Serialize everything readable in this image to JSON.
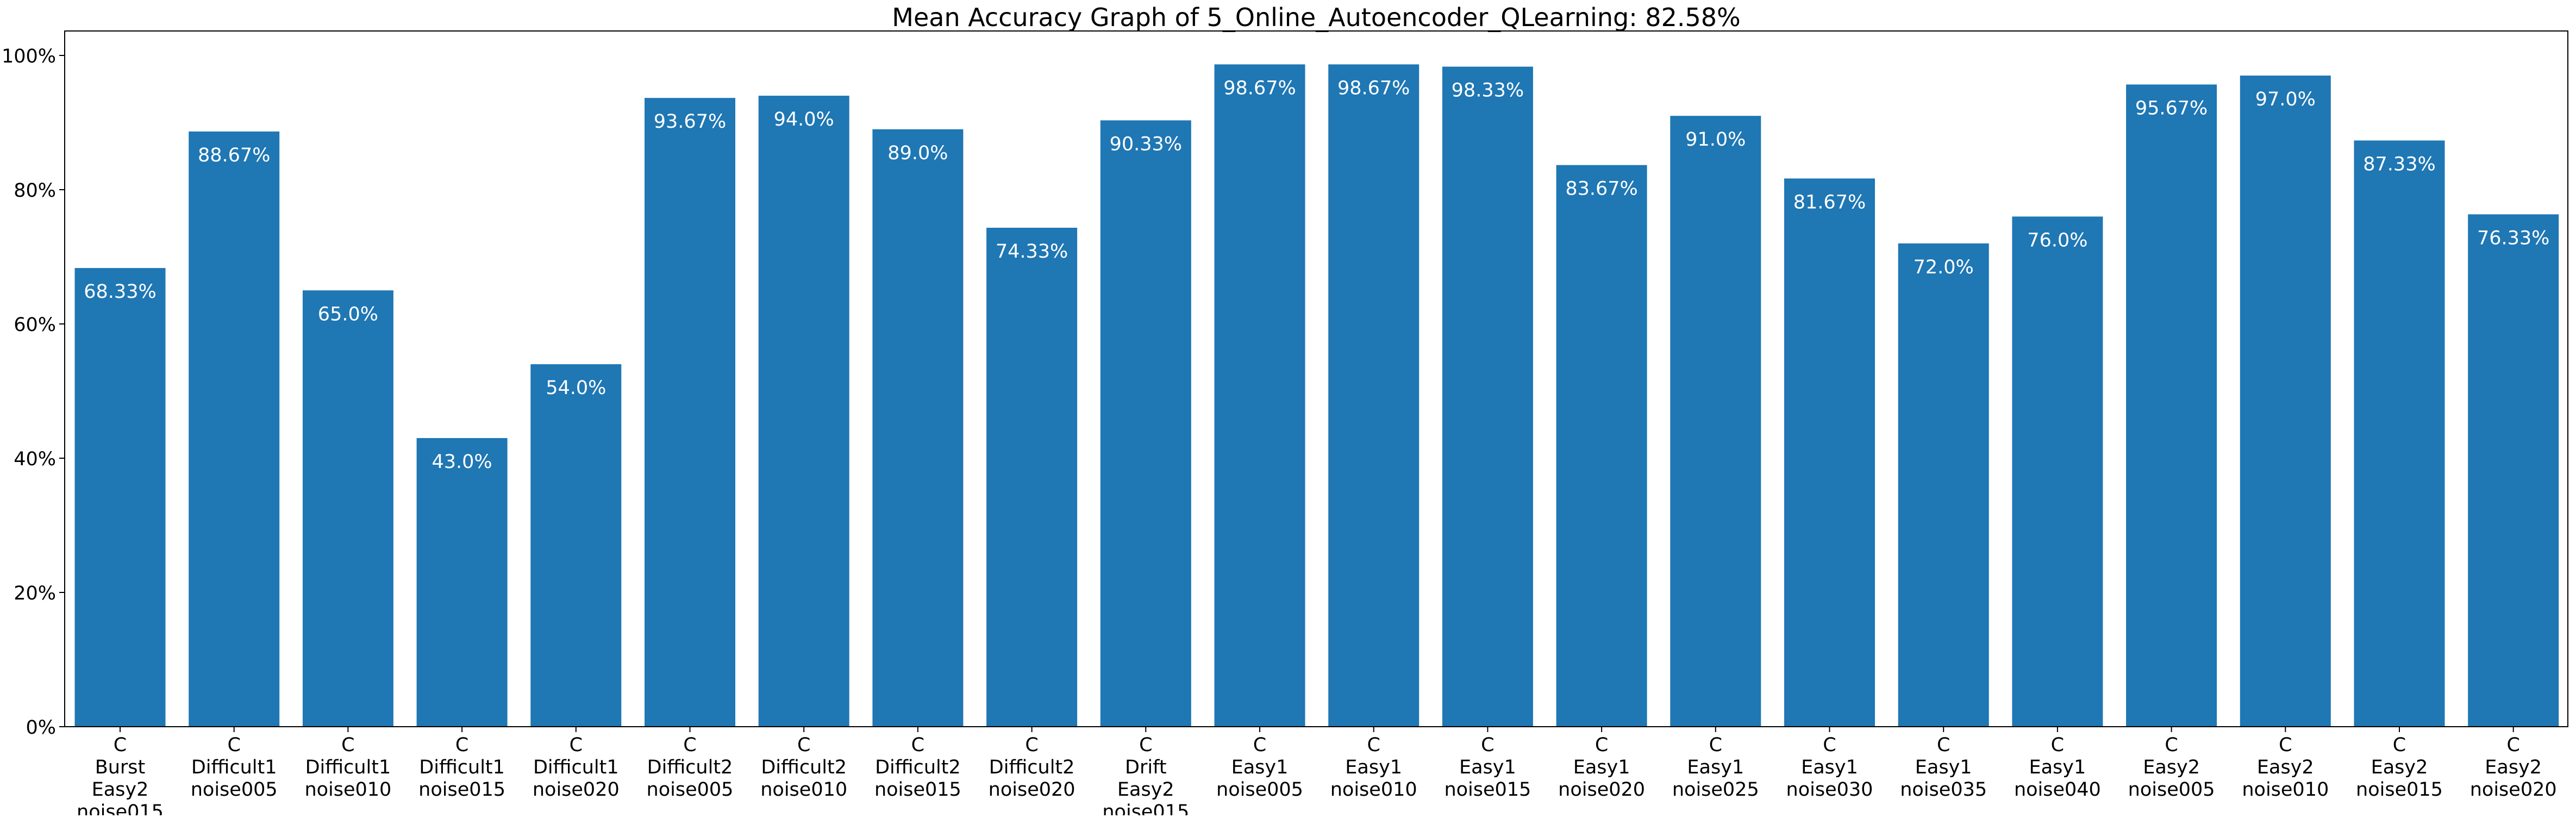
{
  "chart_data": {
    "type": "bar",
    "title": "Mean Accuracy Graph of 5_Online_Autoencoder_QLearning: 82.58%",
    "xlabel": "",
    "ylabel": "",
    "ylim": [
      0,
      100
    ],
    "yticks": [
      "0%",
      "20%",
      "40%",
      "60%",
      "80%",
      "100%"
    ],
    "grid": false,
    "bar_color": "#1f77b4",
    "label_color": "#ffffff",
    "categories": [
      [
        "C",
        "Burst",
        "Easy2",
        "noise015"
      ],
      [
        "C",
        "Difficult1",
        "noise005"
      ],
      [
        "C",
        "Difficult1",
        "noise010"
      ],
      [
        "C",
        "Difficult1",
        "noise015"
      ],
      [
        "C",
        "Difficult1",
        "noise020"
      ],
      [
        "C",
        "Difficult2",
        "noise005"
      ],
      [
        "C",
        "Difficult2",
        "noise010"
      ],
      [
        "C",
        "Difficult2",
        "noise015"
      ],
      [
        "C",
        "Difficult2",
        "noise020"
      ],
      [
        "C",
        "Drift",
        "Easy2",
        "noise015"
      ],
      [
        "C",
        "Easy1",
        "noise005"
      ],
      [
        "C",
        "Easy1",
        "noise010"
      ],
      [
        "C",
        "Easy1",
        "noise015"
      ],
      [
        "C",
        "Easy1",
        "noise020"
      ],
      [
        "C",
        "Easy1",
        "noise025"
      ],
      [
        "C",
        "Easy1",
        "noise030"
      ],
      [
        "C",
        "Easy1",
        "noise035"
      ],
      [
        "C",
        "Easy1",
        "noise040"
      ],
      [
        "C",
        "Easy2",
        "noise005"
      ],
      [
        "C",
        "Easy2",
        "noise010"
      ],
      [
        "C",
        "Easy2",
        "noise015"
      ],
      [
        "C",
        "Easy2",
        "noise020"
      ]
    ],
    "values": [
      68.33,
      88.67,
      65.0,
      43.0,
      54.0,
      93.67,
      94.0,
      89.0,
      74.33,
      90.33,
      98.67,
      98.67,
      98.33,
      83.67,
      91.0,
      81.67,
      72.0,
      76.0,
      95.67,
      97.0,
      87.33,
      76.33
    ],
    "value_labels": [
      "68.33%",
      "88.67%",
      "65.0%",
      "43.0%",
      "54.0%",
      "93.67%",
      "94.0%",
      "89.0%",
      "74.33%",
      "90.33%",
      "98.67%",
      "98.67%",
      "98.33%",
      "83.67%",
      "91.0%",
      "81.67%",
      "72.0%",
      "76.0%",
      "95.67%",
      "97.0%",
      "87.33%",
      "76.33%"
    ]
  }
}
